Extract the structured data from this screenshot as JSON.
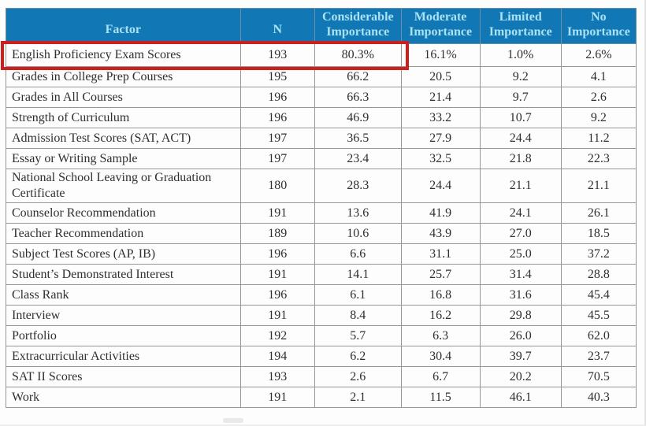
{
  "colors": {
    "header_bg": "#1178b5",
    "header_text": "#a9e2f2",
    "highlight_red": "#cb201d",
    "grid_line": "#979797",
    "body_text": "#2f2f2f"
  },
  "table": {
    "columns": [
      {
        "label": "Factor"
      },
      {
        "label": "N"
      },
      {
        "label": "Considerable Importance"
      },
      {
        "label": "Moderate Importance"
      },
      {
        "label": "Limited Importance"
      },
      {
        "label": "No Importance"
      }
    ],
    "rows": [
      {
        "factor": "English Proficiency Exam Scores",
        "n": "193",
        "values": [
          "80.3%",
          "16.1%",
          "1.0%",
          "2.6%"
        ],
        "highlighted": true
      },
      {
        "factor": "Grades in College Prep Courses",
        "n": "195",
        "values": [
          "66.2",
          "20.5",
          "9.2",
          "4.1"
        ],
        "highlighted": false
      },
      {
        "factor": "Grades in All Courses",
        "n": "196",
        "values": [
          "66.3",
          "21.4",
          "9.7",
          "2.6"
        ],
        "highlighted": false
      },
      {
        "factor": "Strength of Curriculum",
        "n": "196",
        "values": [
          "46.9",
          "33.2",
          "10.7",
          "9.2"
        ],
        "highlighted": false
      },
      {
        "factor": "Admission Test Scores (SAT, ACT)",
        "n": "197",
        "values": [
          "36.5",
          "27.9",
          "24.4",
          "11.2"
        ],
        "highlighted": false
      },
      {
        "factor": "Essay or Writing Sample",
        "n": "197",
        "values": [
          "23.4",
          "32.5",
          "21.8",
          "22.3"
        ],
        "highlighted": false
      },
      {
        "factor": "National School Leaving or Graduation Certificate",
        "n": "180",
        "values": [
          "28.3",
          "24.4",
          "21.1",
          "21.1"
        ],
        "highlighted": false
      },
      {
        "factor": "Counselor Recommendation",
        "n": "191",
        "values": [
          "13.6",
          "41.9",
          "24.1",
          "26.1"
        ],
        "highlighted": false
      },
      {
        "factor": "Teacher Recommendation",
        "n": "189",
        "values": [
          "10.6",
          "43.9",
          "27.0",
          "18.5"
        ],
        "highlighted": false
      },
      {
        "factor": "Subject Test Scores (AP, IB)",
        "n": "196",
        "values": [
          "6.6",
          "31.1",
          "25.0",
          "37.2"
        ],
        "highlighted": false
      },
      {
        "factor": "Student’s Demonstrated Interest",
        "n": "191",
        "values": [
          "14.1",
          "25.7",
          "31.4",
          "28.8"
        ],
        "highlighted": false
      },
      {
        "factor": "Class Rank",
        "n": "196",
        "values": [
          "6.1",
          "16.8",
          "31.6",
          "45.4"
        ],
        "highlighted": false
      },
      {
        "factor": "Interview",
        "n": "191",
        "values": [
          "8.4",
          "16.2",
          "29.8",
          "45.5"
        ],
        "highlighted": false
      },
      {
        "factor": "Portfolio",
        "n": "192",
        "values": [
          "5.7",
          "6.3",
          "26.0",
          "62.0"
        ],
        "highlighted": false
      },
      {
        "factor": "Extracurricular Activities",
        "n": "194",
        "values": [
          "6.2",
          "30.4",
          "39.7",
          "23.7"
        ],
        "highlighted": false
      },
      {
        "factor": "SAT II Scores",
        "n": "193",
        "values": [
          "2.6",
          "6.7",
          "20.2",
          "70.5"
        ],
        "highlighted": false
      },
      {
        "factor": "Work",
        "n": "191",
        "values": [
          "2.1",
          "11.5",
          "46.1",
          "40.3"
        ],
        "highlighted": false
      }
    ]
  }
}
